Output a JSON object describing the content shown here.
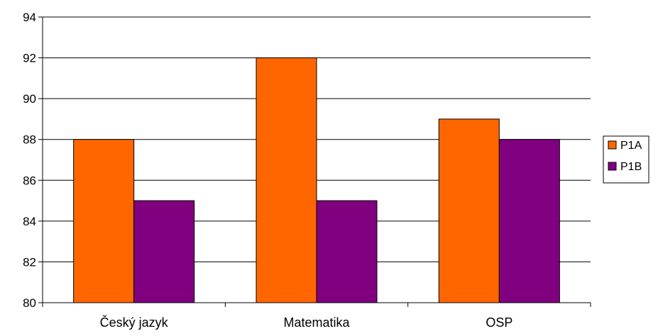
{
  "chart_data": {
    "type": "bar",
    "title": "",
    "xlabel": "",
    "ylabel": "",
    "categories": [
      "Český jazyk",
      "Matematika",
      "OSP"
    ],
    "series": [
      {
        "name": "P1A",
        "values": [
          88,
          92,
          89
        ],
        "color": "#FF6600"
      },
      {
        "name": "P1B",
        "values": [
          85,
          85,
          88
        ],
        "color": "#800080"
      }
    ],
    "ylim": [
      80,
      94
    ],
    "yticks": [
      80,
      82,
      84,
      86,
      88,
      90,
      92,
      94
    ],
    "grid": true,
    "legend_position": "right"
  }
}
